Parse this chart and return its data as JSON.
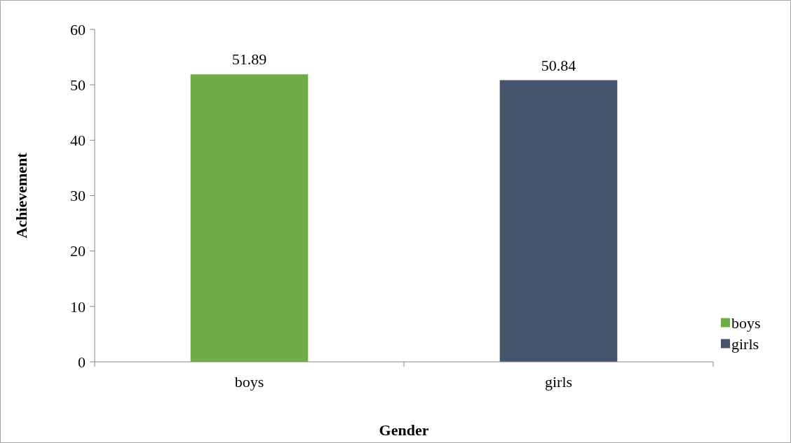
{
  "chart_data": {
    "type": "bar",
    "xlabel": "Gender",
    "ylabel": "Achievement",
    "categories": [
      "boys",
      "girls"
    ],
    "series": [
      {
        "name": "boys",
        "color": "#70ad47",
        "values": [
          51.89,
          null
        ]
      },
      {
        "name": "girls",
        "color": "#44546a",
        "values": [
          null,
          50.84
        ]
      }
    ],
    "stacked": true,
    "ylim": [
      0,
      60
    ],
    "yticks": [
      0,
      10,
      20,
      30,
      40,
      50,
      60
    ],
    "data_labels": true,
    "legend": "right",
    "grid": false
  }
}
